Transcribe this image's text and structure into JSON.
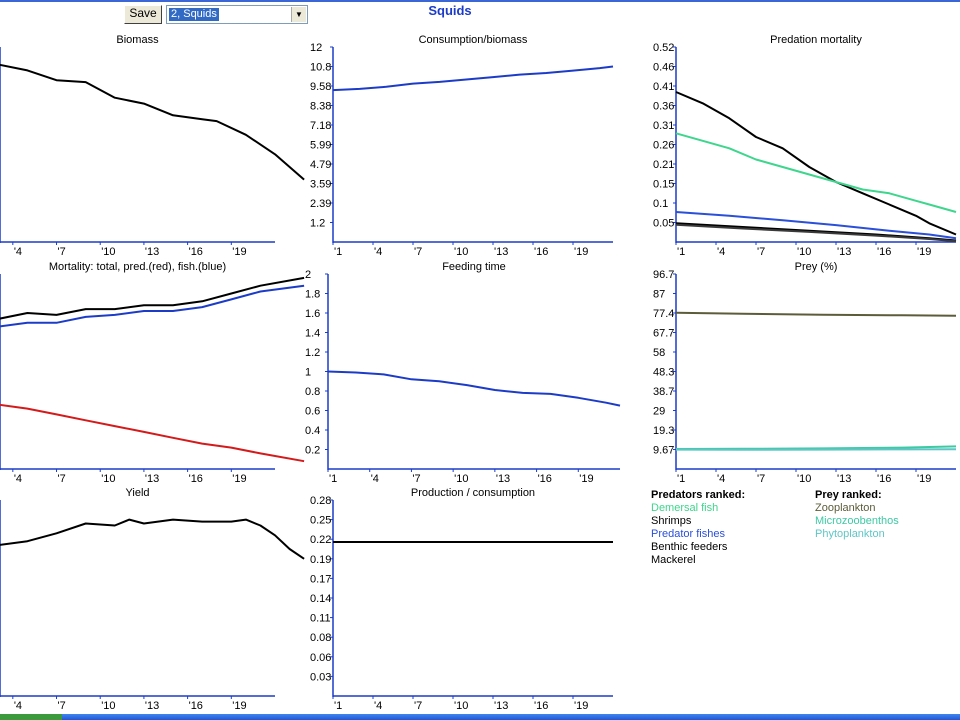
{
  "toolbar": {
    "save_label": "Save",
    "group_select_value": "2, Squids"
  },
  "page_title": "Squids",
  "chart_data": [
    {
      "type": "line",
      "title": "Biomass",
      "x_ticks": [
        "'4",
        "'7",
        "'10",
        "'13",
        "'16",
        "'19"
      ],
      "y_ticks": [],
      "series": [
        {
          "color": "#000000",
          "points": [
            [
              1,
              0.92
            ],
            [
              3,
              0.91
            ],
            [
              5,
              0.88
            ],
            [
              7,
              0.83
            ],
            [
              9,
              0.82
            ],
            [
              11,
              0.74
            ],
            [
              13,
              0.71
            ],
            [
              15,
              0.65
            ],
            [
              17,
              0.63
            ],
            [
              18,
              0.62
            ],
            [
              20,
              0.55
            ],
            [
              22,
              0.45
            ],
            [
              24,
              0.32
            ]
          ]
        }
      ]
    },
    {
      "type": "line",
      "title": "Consumption/biomass",
      "x_ticks": [
        "'1",
        "'4",
        "'7",
        "'10",
        "'13",
        "'16",
        "'19"
      ],
      "y_ticks": [
        "12",
        "10.8",
        "9.58",
        "8.38",
        "7.18",
        "5.99",
        "4.79",
        "3.59",
        "2.39",
        "1.2"
      ],
      "ylim": [
        0,
        12
      ],
      "series": [
        {
          "color": "#1c3cc8",
          "points": [
            [
              1,
              9.35
            ],
            [
              3,
              9.42
            ],
            [
              5,
              9.55
            ],
            [
              7,
              9.75
            ],
            [
              9,
              9.85
            ],
            [
              11,
              10.0
            ],
            [
              13,
              10.15
            ],
            [
              15,
              10.3
            ],
            [
              17,
              10.4
            ],
            [
              19,
              10.55
            ],
            [
              21,
              10.7
            ],
            [
              22,
              10.8
            ]
          ]
        }
      ]
    },
    {
      "type": "line",
      "title": "Predation mortality",
      "x_ticks": [
        "'1",
        "'4",
        "'7",
        "'10",
        "'13",
        "'16",
        "'19"
      ],
      "y_ticks": [
        "0.52",
        "0.46",
        "0.41",
        "0.36",
        "0.31",
        "0.26",
        "0.21",
        "0.15",
        "0.1",
        "0.05"
      ],
      "ylim": [
        0,
        0.52
      ],
      "series": [
        {
          "color": "#000000",
          "points": [
            [
              1,
              0.4
            ],
            [
              3,
              0.37
            ],
            [
              5,
              0.33
            ],
            [
              7,
              0.28
            ],
            [
              9,
              0.25
            ],
            [
              11,
              0.2
            ],
            [
              13,
              0.16
            ],
            [
              15,
              0.13
            ],
            [
              17,
              0.1
            ],
            [
              19,
              0.07
            ],
            [
              20,
              0.05
            ],
            [
              22,
              0.02
            ]
          ]
        },
        {
          "color": "#3dd68c",
          "points": [
            [
              1,
              0.29
            ],
            [
              3,
              0.27
            ],
            [
              5,
              0.25
            ],
            [
              7,
              0.22
            ],
            [
              9,
              0.2
            ],
            [
              11,
              0.18
            ],
            [
              13,
              0.16
            ],
            [
              15,
              0.14
            ],
            [
              17,
              0.13
            ],
            [
              19,
              0.11
            ],
            [
              20,
              0.1
            ],
            [
              22,
              0.08
            ]
          ]
        },
        {
          "color": "#2a4fd8",
          "points": [
            [
              1,
              0.08
            ],
            [
              5,
              0.07
            ],
            [
              9,
              0.058
            ],
            [
              13,
              0.045
            ],
            [
              17,
              0.03
            ],
            [
              20,
              0.02
            ],
            [
              22,
              0.01
            ]
          ]
        },
        {
          "color": "#000000",
          "points": [
            [
              1,
              0.05
            ],
            [
              6,
              0.04
            ],
            [
              11,
              0.03
            ],
            [
              16,
              0.02
            ],
            [
              20,
              0.01
            ],
            [
              22,
              0.004
            ]
          ]
        },
        {
          "color": "#3a3a3a",
          "points": [
            [
              1,
              0.046
            ],
            [
              6,
              0.036
            ],
            [
              11,
              0.027
            ],
            [
              16,
              0.017
            ],
            [
              20,
              0.008
            ],
            [
              22,
              0.002
            ]
          ]
        }
      ]
    },
    {
      "type": "line",
      "title": "Mortality: total, pred.(red), fish.(blue)",
      "x_ticks": [
        "'4",
        "'7",
        "'10",
        "'13",
        "'16",
        "'19"
      ],
      "y_ticks": [],
      "series": [
        {
          "color": "#000000",
          "points": [
            [
              1,
              0.76
            ],
            [
              3,
              0.77
            ],
            [
              5,
              0.8
            ],
            [
              7,
              0.79
            ],
            [
              9,
              0.82
            ],
            [
              11,
              0.82
            ],
            [
              13,
              0.84
            ],
            [
              15,
              0.84
            ],
            [
              17,
              0.86
            ],
            [
              19,
              0.9
            ],
            [
              21,
              0.94
            ],
            [
              24,
              0.98
            ]
          ]
        },
        {
          "color": "#1c3cc8",
          "points": [
            [
              1,
              0.72
            ],
            [
              3,
              0.73
            ],
            [
              5,
              0.75
            ],
            [
              7,
              0.75
            ],
            [
              9,
              0.78
            ],
            [
              11,
              0.79
            ],
            [
              13,
              0.81
            ],
            [
              15,
              0.81
            ],
            [
              17,
              0.83
            ],
            [
              19,
              0.87
            ],
            [
              21,
              0.91
            ],
            [
              24,
              0.94
            ]
          ]
        },
        {
          "color": "#d41a1a",
          "points": [
            [
              1,
              0.34
            ],
            [
              3,
              0.33
            ],
            [
              5,
              0.31
            ],
            [
              7,
              0.28
            ],
            [
              9,
              0.25
            ],
            [
              11,
              0.22
            ],
            [
              13,
              0.19
            ],
            [
              15,
              0.16
            ],
            [
              17,
              0.13
            ],
            [
              19,
              0.11
            ],
            [
              21,
              0.08
            ],
            [
              24,
              0.04
            ]
          ]
        }
      ]
    },
    {
      "type": "line",
      "title": "Feeding time",
      "x_ticks": [
        "'1",
        "'4",
        "'7",
        "'10",
        "'13",
        "'16",
        "'19"
      ],
      "y_ticks": [
        "2",
        "1.8",
        "1.6",
        "1.4",
        "1.2",
        "1",
        "0.8",
        "0.6",
        "0.4",
        "0.2"
      ],
      "ylim": [
        0,
        2
      ],
      "series": [
        {
          "color": "#1c3cc8",
          "points": [
            [
              1,
              1.0
            ],
            [
              3,
              0.99
            ],
            [
              5,
              0.97
            ],
            [
              7,
              0.92
            ],
            [
              9,
              0.9
            ],
            [
              11,
              0.86
            ],
            [
              13,
              0.81
            ],
            [
              15,
              0.78
            ],
            [
              17,
              0.77
            ],
            [
              19,
              0.73
            ],
            [
              21,
              0.68
            ],
            [
              22,
              0.65
            ]
          ]
        }
      ]
    },
    {
      "type": "line",
      "title": "Prey (%)",
      "x_ticks": [
        "'1",
        "'4",
        "'7",
        "'10",
        "'13",
        "'16",
        "'19"
      ],
      "y_ticks": [
        "96.7",
        "87",
        "77.4",
        "67.7",
        "58",
        "48.3",
        "38.7",
        "29",
        "19.3",
        "9.67"
      ],
      "ylim": [
        0,
        96.7
      ],
      "series": [
        {
          "color": "#5c5c3a",
          "points": [
            [
              1,
              77.5
            ],
            [
              6,
              77.0
            ],
            [
              12,
              76.5
            ],
            [
              18,
              76.2
            ],
            [
              22,
              76.0
            ]
          ]
        },
        {
          "color": "#3ec9a3",
          "points": [
            [
              1,
              9.9
            ],
            [
              6,
              10.0
            ],
            [
              12,
              10.2
            ],
            [
              18,
              10.6
            ],
            [
              22,
              11.2
            ]
          ]
        },
        {
          "color": "#5fc6c6",
          "points": [
            [
              1,
              9.6
            ],
            [
              6,
              9.5
            ],
            [
              12,
              9.6
            ],
            [
              18,
              9.7
            ],
            [
              22,
              9.8
            ]
          ]
        }
      ]
    },
    {
      "type": "line",
      "title": "Yield",
      "x_ticks": [
        "'4",
        "'7",
        "'10",
        "'13",
        "'16",
        "'19"
      ],
      "y_ticks": [],
      "series": [
        {
          "color": "#000000",
          "points": [
            [
              1,
              0.76
            ],
            [
              3,
              0.77
            ],
            [
              5,
              0.79
            ],
            [
              7,
              0.83
            ],
            [
              9,
              0.88
            ],
            [
              11,
              0.87
            ],
            [
              12,
              0.9
            ],
            [
              13,
              0.88
            ],
            [
              15,
              0.9
            ],
            [
              17,
              0.89
            ],
            [
              19,
              0.89
            ],
            [
              20,
              0.9
            ],
            [
              21,
              0.87
            ],
            [
              22,
              0.82
            ],
            [
              23,
              0.75
            ],
            [
              24,
              0.7
            ]
          ]
        }
      ]
    },
    {
      "type": "line",
      "title": "Production / consumption",
      "x_ticks": [
        "'1",
        "'4",
        "'7",
        "'10",
        "'13",
        "'16",
        "'19"
      ],
      "y_ticks": [
        "0.28",
        "0.25",
        "0.22",
        "0.19",
        "0.17",
        "0.14",
        "0.11",
        "0.08",
        "0.06",
        "0.03"
      ],
      "ylim": [
        0,
        0.28
      ],
      "series": [
        {
          "color": "#000000",
          "points": [
            [
              1,
              0.22
            ],
            [
              22,
              0.22
            ]
          ]
        }
      ]
    }
  ],
  "legend": {
    "predators_title": "Predators ranked:",
    "predators": [
      {
        "name": "Demersal fish",
        "color": "#3dd68c"
      },
      {
        "name": "Shrimps",
        "color": "#000000"
      },
      {
        "name": "Predator fishes",
        "color": "#2a4fd8"
      },
      {
        "name": "Benthic feeders",
        "color": "#000000"
      },
      {
        "name": "Mackerel",
        "color": "#000000"
      }
    ],
    "prey_title": "Prey ranked:",
    "prey": [
      {
        "name": "Zooplankton",
        "color": "#5c5c3a"
      },
      {
        "name": "Microzoobenthos",
        "color": "#3ec9a3"
      },
      {
        "name": "Phytoplankton",
        "color": "#5fc6c6"
      }
    ]
  },
  "colors": {
    "title": "#1c3cc8",
    "axis": "#1c3cc8"
  }
}
